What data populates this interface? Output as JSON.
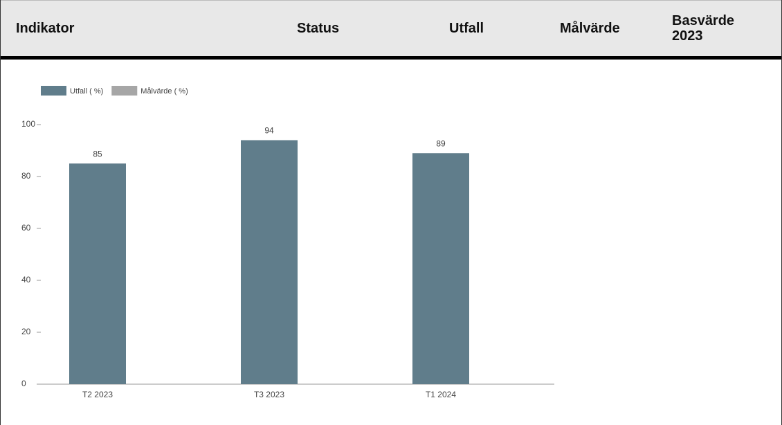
{
  "header": {
    "columns": [
      "Indikator",
      "Status",
      "Utfall",
      "Målvärde",
      "Basvärde 2023"
    ]
  },
  "chart_data": {
    "type": "bar",
    "categories": [
      "T2 2023",
      "T3 2023",
      "T1 2024"
    ],
    "series": [
      {
        "name": "Utfall ( %)",
        "color": "#607d8b",
        "values": [
          85,
          94,
          89
        ]
      },
      {
        "name": "Målvärde ( %)",
        "color": "#a6a6a6",
        "values": [
          null,
          null,
          null
        ]
      }
    ],
    "ylim": [
      0,
      100
    ],
    "yticks": [
      0,
      20,
      40,
      60,
      80,
      100
    ],
    "grid": false,
    "show_value_labels": true
  }
}
